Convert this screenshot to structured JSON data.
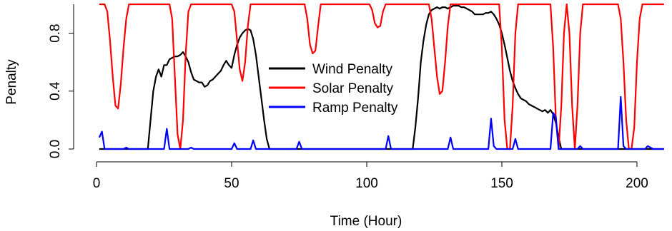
{
  "chart_data": {
    "type": "line",
    "title": "",
    "xlabel": "Time (Hour)",
    "ylabel": "Penalty",
    "xlim": [
      0,
      210
    ],
    "ylim": [
      0,
      1
    ],
    "x_ticks": [
      0,
      50,
      100,
      150,
      200
    ],
    "y_ticks": [
      0.0,
      0.4,
      0.8
    ],
    "y_tick_labels": [
      "0.0",
      "0.4",
      "0.8"
    ],
    "legend_position": "center",
    "series": [
      {
        "name": "Wind Penalty",
        "color": "#000000",
        "points": [
          [
            1,
            0
          ],
          [
            18,
            0
          ],
          [
            19,
            0
          ],
          [
            20,
            0.2
          ],
          [
            21,
            0.4
          ],
          [
            22,
            0.5
          ],
          [
            23,
            0.55
          ],
          [
            24,
            0.5
          ],
          [
            25,
            0.58
          ],
          [
            26,
            0.58
          ],
          [
            27,
            0.62
          ],
          [
            28,
            0.63
          ],
          [
            29,
            0.64
          ],
          [
            30,
            0.64
          ],
          [
            31,
            0.65
          ],
          [
            32,
            0.67
          ],
          [
            33,
            0.64
          ],
          [
            34,
            0.6
          ],
          [
            35,
            0.53
          ],
          [
            36,
            0.48
          ],
          [
            37,
            0.47
          ],
          [
            38,
            0.46
          ],
          [
            39,
            0.46
          ],
          [
            40,
            0.43
          ],
          [
            41,
            0.44
          ],
          [
            42,
            0.47
          ],
          [
            43,
            0.48
          ],
          [
            44,
            0.5
          ],
          [
            45,
            0.52
          ],
          [
            46,
            0.54
          ],
          [
            47,
            0.58
          ],
          [
            48,
            0.61
          ],
          [
            49,
            0.58
          ],
          [
            50,
            0.56
          ],
          [
            51,
            0.65
          ],
          [
            52,
            0.72
          ],
          [
            53,
            0.77
          ],
          [
            54,
            0.8
          ],
          [
            55,
            0.82
          ],
          [
            56,
            0.83
          ],
          [
            57,
            0.82
          ],
          [
            58,
            0.76
          ],
          [
            59,
            0.65
          ],
          [
            60,
            0.5
          ],
          [
            61,
            0.35
          ],
          [
            62,
            0.2
          ],
          [
            63,
            0.07
          ],
          [
            64,
            0
          ],
          [
            117,
            0
          ],
          [
            118,
            0.15
          ],
          [
            119,
            0.35
          ],
          [
            120,
            0.6
          ],
          [
            121,
            0.75
          ],
          [
            122,
            0.86
          ],
          [
            123,
            0.93
          ],
          [
            124,
            0.96
          ],
          [
            125,
            0.97
          ],
          [
            126,
            0.98
          ],
          [
            127,
            0.97
          ],
          [
            128,
            0.98
          ],
          [
            129,
            0.98
          ],
          [
            130,
            0.97
          ],
          [
            131,
            0.98
          ],
          [
            132,
            0.99
          ],
          [
            133,
            0.99
          ],
          [
            134,
            0.99
          ],
          [
            135,
            0.98
          ],
          [
            136,
            0.98
          ],
          [
            137,
            0.97
          ],
          [
            138,
            0.96
          ],
          [
            139,
            0.95
          ],
          [
            140,
            0.93
          ],
          [
            141,
            0.93
          ],
          [
            142,
            0.93
          ],
          [
            143,
            0.93
          ],
          [
            144,
            0.94
          ],
          [
            145,
            0.94
          ],
          [
            146,
            0.95
          ],
          [
            147,
            0.93
          ],
          [
            148,
            0.9
          ],
          [
            149,
            0.86
          ],
          [
            150,
            0.8
          ],
          [
            151,
            0.72
          ],
          [
            152,
            0.63
          ],
          [
            153,
            0.54
          ],
          [
            154,
            0.47
          ],
          [
            155,
            0.42
          ],
          [
            156,
            0.38
          ],
          [
            157,
            0.35
          ],
          [
            158,
            0.34
          ],
          [
            159,
            0.33
          ],
          [
            160,
            0.31
          ],
          [
            161,
            0.3
          ],
          [
            162,
            0.29
          ],
          [
            163,
            0.28
          ],
          [
            164,
            0.27
          ],
          [
            165,
            0.26
          ],
          [
            166,
            0.27
          ],
          [
            167,
            0.25
          ],
          [
            168,
            0.27
          ],
          [
            169,
            0.24
          ],
          [
            170,
            0.18
          ],
          [
            171,
            0.08
          ],
          [
            172,
            0
          ],
          [
            210,
            0
          ]
        ]
      },
      {
        "name": "Solar Penalty",
        "color": "#ff0000",
        "points": [
          [
            1,
            1
          ],
          [
            3,
            1
          ],
          [
            4,
            0.95
          ],
          [
            5,
            0.75
          ],
          [
            6,
            0.5
          ],
          [
            7,
            0.3
          ],
          [
            8,
            0.28
          ],
          [
            9,
            0.45
          ],
          [
            10,
            0.7
          ],
          [
            11,
            0.9
          ],
          [
            12,
            1
          ],
          [
            27,
            1
          ],
          [
            28,
            0.9
          ],
          [
            29,
            0.5
          ],
          [
            30,
            0.1
          ],
          [
            31,
            0
          ],
          [
            32,
            0.2
          ],
          [
            33,
            0.65
          ],
          [
            34,
            0.95
          ],
          [
            35,
            1
          ],
          [
            50,
            1
          ],
          [
            51,
            0.95
          ],
          [
            52,
            0.75
          ],
          [
            53,
            0.55
          ],
          [
            54,
            0.47
          ],
          [
            55,
            0.6
          ],
          [
            56,
            0.85
          ],
          [
            57,
            1
          ],
          [
            77,
            1
          ],
          [
            78,
            0.9
          ],
          [
            79,
            0.72
          ],
          [
            80,
            0.66
          ],
          [
            81,
            0.68
          ],
          [
            82,
            0.85
          ],
          [
            83,
            1
          ],
          [
            101,
            1
          ],
          [
            102,
            0.96
          ],
          [
            103,
            0.87
          ],
          [
            104,
            0.84
          ],
          [
            105,
            0.85
          ],
          [
            106,
            0.95
          ],
          [
            107,
            1
          ],
          [
            123,
            1
          ],
          [
            124,
            0.9
          ],
          [
            125,
            0.7
          ],
          [
            126,
            0.5
          ],
          [
            127,
            0.38
          ],
          [
            128,
            0.4
          ],
          [
            129,
            0.6
          ],
          [
            130,
            0.85
          ],
          [
            131,
            1
          ],
          [
            149,
            1
          ],
          [
            150,
            0.7
          ],
          [
            151,
            0.2
          ],
          [
            152,
            0
          ],
          [
            153,
            0
          ],
          [
            154,
            0.3
          ],
          [
            155,
            0.8
          ],
          [
            156,
            1
          ],
          [
            168,
            1
          ],
          [
            169,
            0.7
          ],
          [
            170,
            0.2
          ],
          [
            171,
            0
          ],
          [
            172,
            0.3
          ],
          [
            173,
            0.8
          ],
          [
            174,
            1
          ],
          [
            174,
            1
          ],
          [
            175,
            0.8
          ],
          [
            176,
            0.3
          ],
          [
            177,
            0
          ],
          [
            178,
            0.3
          ],
          [
            179,
            0.8
          ],
          [
            180,
            1
          ],
          [
            193,
            1
          ],
          [
            194,
            0.9
          ],
          [
            195,
            0.6
          ],
          [
            196,
            0.2
          ],
          [
            197,
            0
          ],
          [
            198,
            0
          ],
          [
            199,
            0.15
          ],
          [
            200,
            0.6
          ],
          [
            201,
            0.9
          ],
          [
            202,
            1
          ],
          [
            210,
            1
          ]
        ]
      },
      {
        "name": "Ramp Penalty",
        "color": "#0000ff",
        "points": [
          [
            1,
            0.08
          ],
          [
            2,
            0.12
          ],
          [
            3,
            0
          ],
          [
            10,
            0
          ],
          [
            11,
            0.01
          ],
          [
            12,
            0
          ],
          [
            25,
            0
          ],
          [
            26,
            0.14
          ],
          [
            27,
            0
          ],
          [
            34,
            0
          ],
          [
            35,
            0.01
          ],
          [
            36,
            0
          ],
          [
            50,
            0
          ],
          [
            51,
            0.04
          ],
          [
            52,
            0
          ],
          [
            57,
            0
          ],
          [
            58,
            0.06
          ],
          [
            59,
            0
          ],
          [
            74,
            0
          ],
          [
            75,
            0.05
          ],
          [
            76,
            0
          ],
          [
            107,
            0
          ],
          [
            108,
            0.09
          ],
          [
            109,
            0
          ],
          [
            130,
            0
          ],
          [
            131,
            0.08
          ],
          [
            132,
            0
          ],
          [
            145,
            0
          ],
          [
            146,
            0.21
          ],
          [
            147,
            0.02
          ],
          [
            148,
            0
          ],
          [
            154,
            0
          ],
          [
            155,
            0.07
          ],
          [
            156,
            0
          ],
          [
            168,
            0
          ],
          [
            169,
            0.25
          ],
          [
            170,
            0.22
          ],
          [
            171,
            0
          ],
          [
            178,
            0
          ],
          [
            179,
            0.02
          ],
          [
            180,
            0
          ],
          [
            193,
            0
          ],
          [
            194,
            0.36
          ],
          [
            195,
            0.02
          ],
          [
            196,
            0
          ],
          [
            203,
            0
          ],
          [
            204,
            0.02
          ],
          [
            205,
            0.01
          ],
          [
            206,
            0
          ],
          [
            210,
            0
          ]
        ]
      }
    ]
  }
}
